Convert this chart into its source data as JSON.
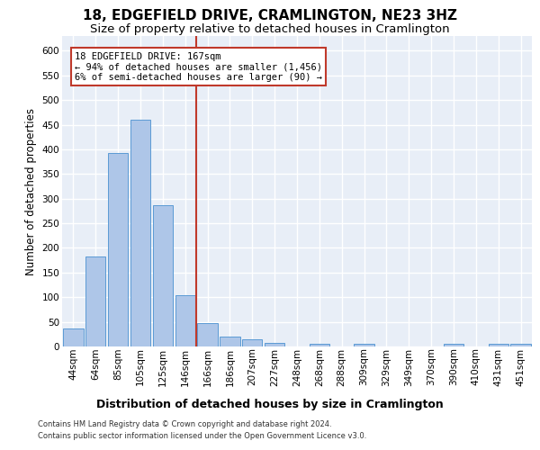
{
  "title": "18, EDGEFIELD DRIVE, CRAMLINGTON, NE23 3HZ",
  "subtitle": "Size of property relative to detached houses in Cramlington",
  "xlabel": "Distribution of detached houses by size in Cramlington",
  "ylabel": "Number of detached properties",
  "categories": [
    "44sqm",
    "64sqm",
    "85sqm",
    "105sqm",
    "125sqm",
    "146sqm",
    "166sqm",
    "186sqm",
    "207sqm",
    "227sqm",
    "248sqm",
    "268sqm",
    "288sqm",
    "309sqm",
    "329sqm",
    "349sqm",
    "370sqm",
    "390sqm",
    "410sqm",
    "431sqm",
    "451sqm"
  ],
  "values": [
    36,
    182,
    393,
    460,
    287,
    104,
    47,
    21,
    15,
    8,
    0,
    5,
    0,
    6,
    0,
    0,
    0,
    5,
    0,
    6,
    5
  ],
  "bar_color": "#aec6e8",
  "bar_edge_color": "#5b9bd5",
  "property_line_index": 6,
  "property_line_color": "#c0392b",
  "annotation_line1": "18 EDGEFIELD DRIVE: 167sqm",
  "annotation_line2": "← 94% of detached houses are smaller (1,456)",
  "annotation_line3": "6% of semi-detached houses are larger (90) →",
  "annotation_box_edgecolor": "#c0392b",
  "ylim": [
    0,
    630
  ],
  "yticks": [
    0,
    50,
    100,
    150,
    200,
    250,
    300,
    350,
    400,
    450,
    500,
    550,
    600
  ],
  "plot_bg_color": "#e8eef7",
  "grid_color": "#ffffff",
  "footer_line1": "Contains HM Land Registry data © Crown copyright and database right 2024.",
  "footer_line2": "Contains public sector information licensed under the Open Government Licence v3.0.",
  "title_fontsize": 11,
  "subtitle_fontsize": 9.5,
  "xlabel_fontsize": 9,
  "ylabel_fontsize": 8.5,
  "tick_fontsize": 7.5,
  "ann_fontsize": 7.5,
  "footer_fontsize": 6.0
}
